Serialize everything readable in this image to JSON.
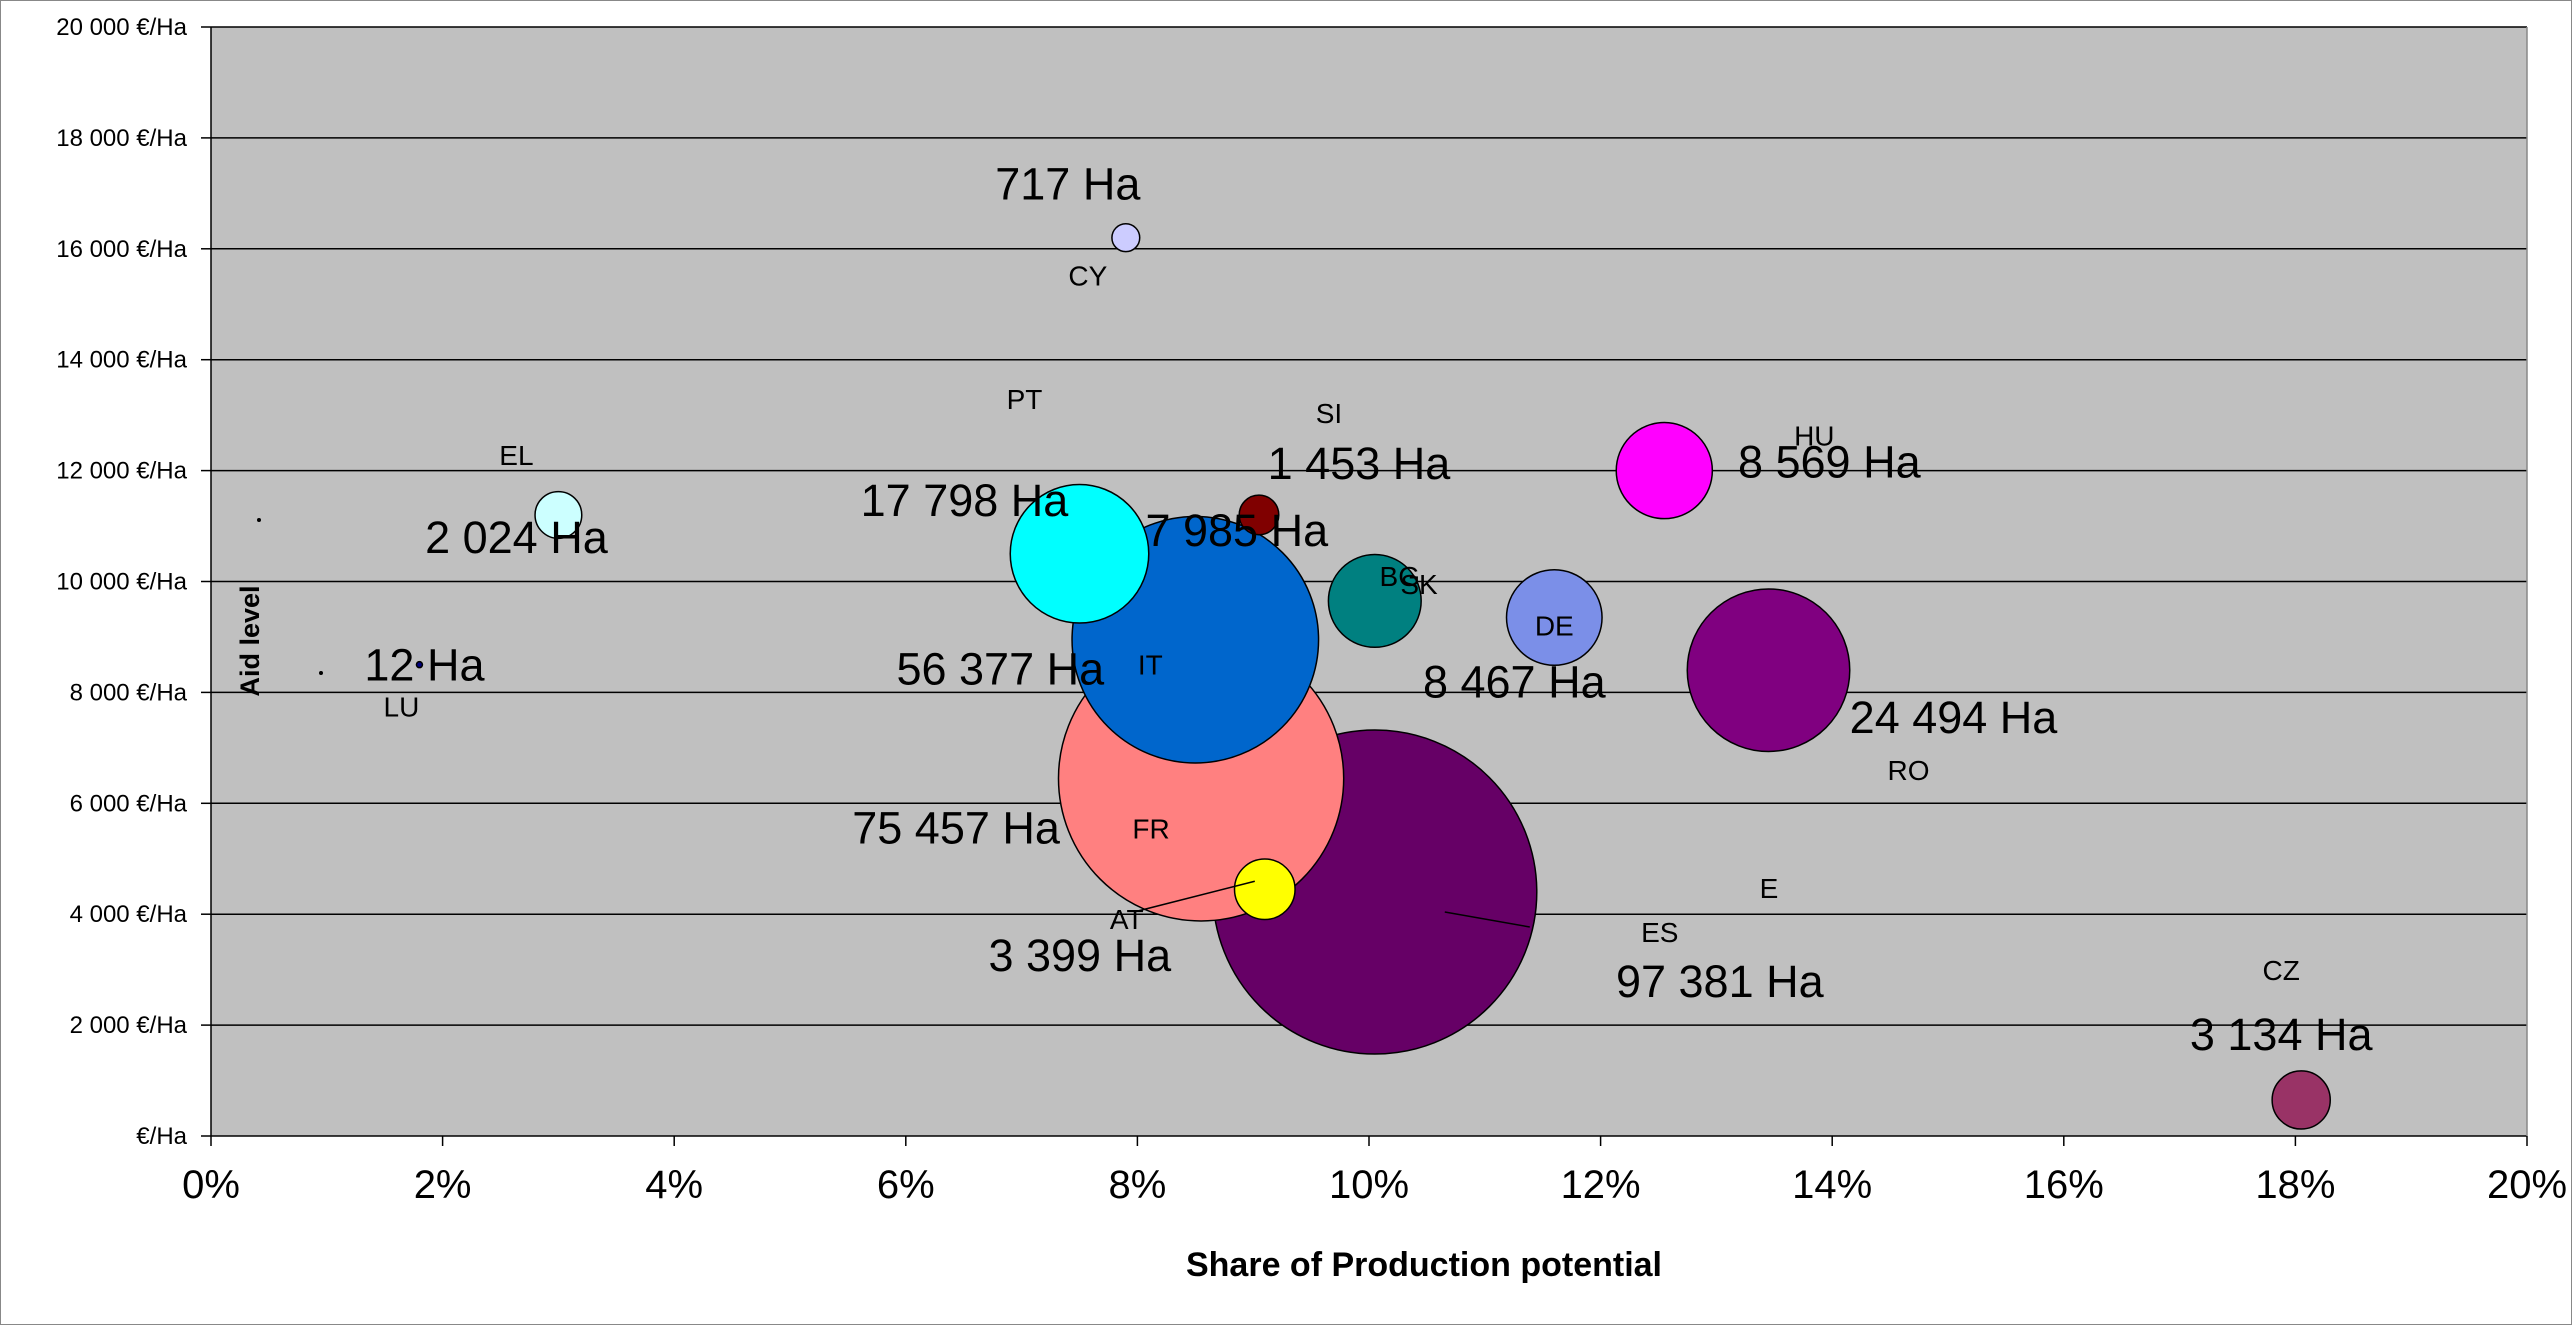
{
  "chart_data": {
    "type": "bubble",
    "xlabel": "Share of Production potential",
    "ylabel": "Aid level",
    "xlim": [
      0,
      20
    ],
    "ylim": [
      0,
      20000
    ],
    "x_tick_labels": [
      "0%",
      "2%",
      "4%",
      "6%",
      "8%",
      "10%",
      "12%",
      "14%",
      "16%",
      "18%",
      "20%"
    ],
    "y_tick_labels": [
      "€/Ha",
      "2 000 €/Ha",
      "4 000 €/Ha",
      "6 000 €/Ha",
      "8 000 €/Ha",
      "10 000 €/Ha",
      "12 000 €/Ha",
      "14 000 €/Ha",
      "16 000 €/Ha",
      "18 000 €/Ha",
      "20 000 €/Ha"
    ],
    "grid": true,
    "plot_background": "#C0C0C0",
    "points": [
      {
        "code": "ES",
        "x": 10.05,
        "y": 4400,
        "area_ha": 97381,
        "size_label": "97 381 Ha",
        "color": "#660066"
      },
      {
        "code": "FR",
        "x": 8.55,
        "y": 6450,
        "area_ha": 75457,
        "size_label": "75 457 Ha",
        "color": "#FF8080"
      },
      {
        "code": "IT",
        "x": 8.5,
        "y": 8950,
        "area_ha": 56377,
        "size_label": "56 377 Ha",
        "color": "#0066CC"
      },
      {
        "code": "RO",
        "x": 13.45,
        "y": 8400,
        "area_ha": 24494,
        "size_label": "24 494 Ha",
        "color": "#800080"
      },
      {
        "code": "PT",
        "x": 7.5,
        "y": 10500,
        "area_ha": 17798,
        "size_label": "17 798 Ha",
        "color": "#00FFFF"
      },
      {
        "code": "HU",
        "x": 12.55,
        "y": 12000,
        "area_ha": 8569,
        "size_label": "8 569 Ha",
        "color": "#FF00FF"
      },
      {
        "code": "DE",
        "x": 11.6,
        "y": 9350,
        "area_ha": 8467,
        "size_label": "8 467 Ha",
        "color": "#7B8FE8"
      },
      {
        "code": "BG",
        "x": 10.05,
        "y": 9650,
        "area_ha": 7985,
        "size_label": "7 985 Ha",
        "color": "#008080"
      },
      {
        "code": "AT",
        "x": 9.1,
        "y": 4450,
        "area_ha": 3399,
        "size_label": "3 399 Ha",
        "color": "#FFFF00"
      },
      {
        "code": "CZ",
        "x": 18.05,
        "y": 650,
        "area_ha": 3134,
        "size_label": "3 134 Ha",
        "color": "#993366"
      },
      {
        "code": "EL",
        "x": 3.0,
        "y": 11200,
        "area_ha": 2024,
        "size_label": "2 024 Ha",
        "color": "#CCFFFF"
      },
      {
        "code": "SI",
        "x": 9.05,
        "y": 11200,
        "area_ha": 1453,
        "size_label": "1 453 Ha",
        "color": "#800000"
      },
      {
        "code": "CY",
        "x": 7.9,
        "y": 16200,
        "area_ha": 717,
        "size_label": "717 Ha",
        "color": "#CCCCFF"
      },
      {
        "code": "LU",
        "x": 1.8,
        "y": 8500,
        "area_ha": 12,
        "size_label": "12 Ha",
        "color": "#000080"
      }
    ],
    "other_labels": [
      "SK",
      "E"
    ]
  }
}
